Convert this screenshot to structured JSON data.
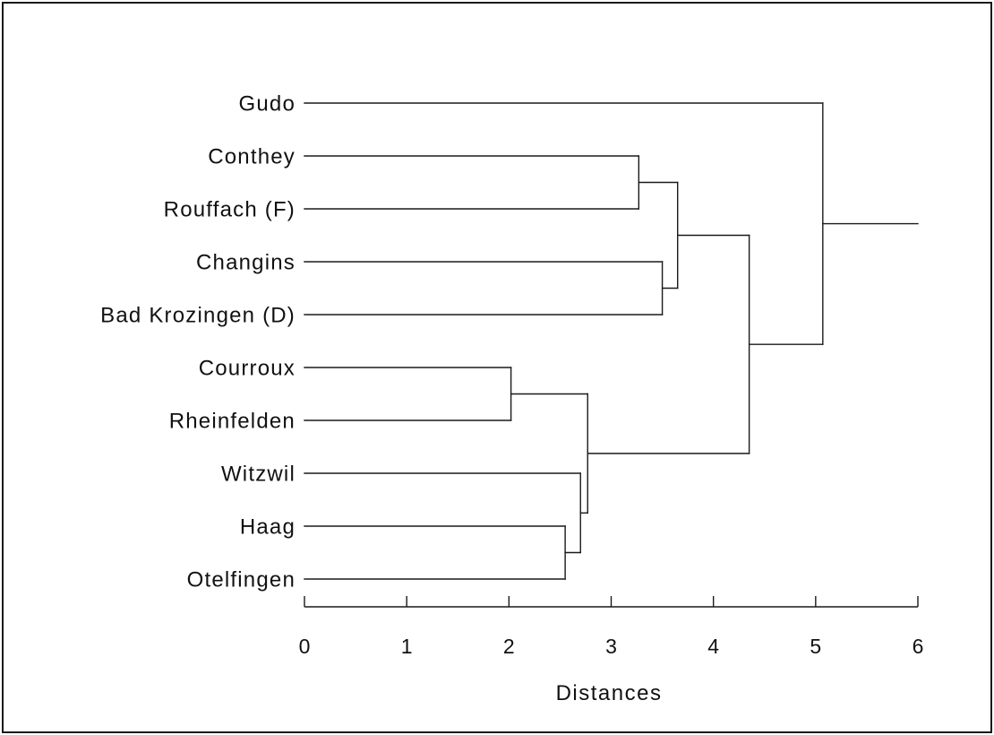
{
  "chart_data": {
    "type": "dendrogram",
    "orientation": "horizontal",
    "xlabel": "Distances",
    "xlim": [
      0,
      6
    ],
    "xticks": [
      0,
      1,
      2,
      3,
      4,
      5,
      6
    ],
    "xtick_labels": [
      "0",
      "1",
      "2",
      "3",
      "4",
      "5",
      "6"
    ],
    "leaves": [
      "Gudo",
      "Conthey",
      "Rouffach (F)",
      "Changins",
      "Bad Krozingen (D)",
      "Courroux",
      "Rheinfelden",
      "Witzwil",
      "Haag",
      "Otelfingen"
    ],
    "merges": [
      {
        "id": "m1",
        "children": [
          "Courroux",
          "Rheinfelden"
        ],
        "distance": 2.02
      },
      {
        "id": "m2",
        "children": [
          "Haag",
          "Otelfingen"
        ],
        "distance": 2.55
      },
      {
        "id": "m3",
        "children": [
          "Witzwil",
          "m2"
        ],
        "distance": 2.7
      },
      {
        "id": "m4",
        "children": [
          "m1",
          "m3"
        ],
        "distance": 2.77
      },
      {
        "id": "m5",
        "children": [
          "Conthey",
          "Rouffach (F)"
        ],
        "distance": 3.27
      },
      {
        "id": "m6",
        "children": [
          "Changins",
          "Bad Krozingen (D)"
        ],
        "distance": 3.5
      },
      {
        "id": "m7",
        "children": [
          "m5",
          "m6"
        ],
        "distance": 3.65
      },
      {
        "id": "m8",
        "children": [
          "m7",
          "m4"
        ],
        "distance": 4.35
      },
      {
        "id": "m9",
        "children": [
          "Gudo",
          "m8"
        ],
        "distance": 5.07
      }
    ],
    "root_line_end": 6.0,
    "grid": false,
    "legend": "none"
  }
}
